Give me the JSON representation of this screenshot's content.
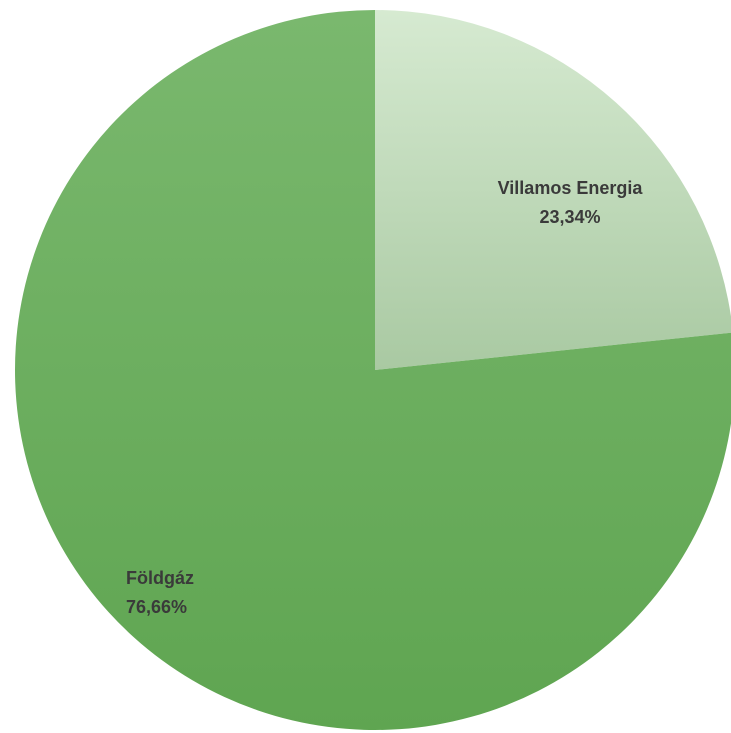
{
  "chart_data": {
    "type": "pie",
    "title": "",
    "start_angle_deg": 0,
    "direction": "clockwise",
    "slices": [
      {
        "name": "Villamos Energia",
        "value": 23.34,
        "value_label": "23,34%",
        "color_light": "#d6ead1",
        "color_dark": "#a9c9a2"
      },
      {
        "name": "Földgáz",
        "value": 76.66,
        "value_label": "76,66%",
        "color_light": "#7ab86e",
        "color_dark": "#5fa551"
      }
    ]
  }
}
